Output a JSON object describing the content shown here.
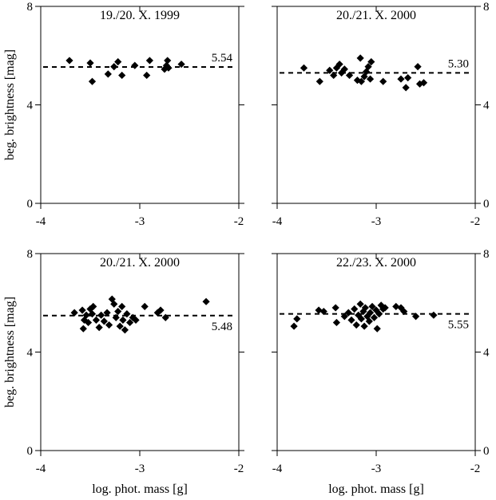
{
  "chart_data": [
    {
      "type": "scatter",
      "title": "19./20. X. 1999",
      "xlim": [
        -4,
        -2
      ],
      "ylim": [
        0,
        8
      ],
      "xticks": [
        "-4",
        "-3",
        "-2"
      ],
      "yticks": [
        "0",
        "4",
        "8"
      ],
      "xlabel": "",
      "ylabel": "beg. brightness [mag]",
      "fit_value": 5.54,
      "fit_label": "5.54",
      "points": [
        {
          "x": -3.71,
          "y": 5.8
        },
        {
          "x": -3.5,
          "y": 5.7
        },
        {
          "x": -3.48,
          "y": 4.95
        },
        {
          "x": -3.32,
          "y": 5.25
        },
        {
          "x": -3.26,
          "y": 5.55
        },
        {
          "x": -3.22,
          "y": 5.75
        },
        {
          "x": -3.18,
          "y": 5.2
        },
        {
          "x": -3.05,
          "y": 5.6
        },
        {
          "x": -2.93,
          "y": 5.2
        },
        {
          "x": -2.9,
          "y": 5.8
        },
        {
          "x": -2.75,
          "y": 5.45
        },
        {
          "x": -2.73,
          "y": 5.6
        },
        {
          "x": -2.72,
          "y": 5.8
        },
        {
          "x": -2.71,
          "y": 5.5
        },
        {
          "x": -2.58,
          "y": 5.65
        }
      ]
    },
    {
      "type": "scatter",
      "title": "20./21. X. 2000",
      "xlim": [
        -4,
        -2
      ],
      "ylim": [
        0,
        8
      ],
      "xticks": [
        "-4",
        "-3",
        "-2"
      ],
      "yticks": [
        "0",
        "4",
        "8"
      ],
      "xlabel": "",
      "ylabel": "",
      "fit_value": 5.3,
      "fit_label": "5.30",
      "points": [
        {
          "x": -3.73,
          "y": 5.5
        },
        {
          "x": -3.57,
          "y": 4.95
        },
        {
          "x": -3.47,
          "y": 5.4
        },
        {
          "x": -3.43,
          "y": 5.2
        },
        {
          "x": -3.4,
          "y": 5.5
        },
        {
          "x": -3.37,
          "y": 5.65
        },
        {
          "x": -3.35,
          "y": 5.3
        },
        {
          "x": -3.32,
          "y": 5.45
        },
        {
          "x": -3.27,
          "y": 5.2
        },
        {
          "x": -3.19,
          "y": 5.0
        },
        {
          "x": -3.16,
          "y": 5.9
        },
        {
          "x": -3.15,
          "y": 4.95
        },
        {
          "x": -3.12,
          "y": 5.15
        },
        {
          "x": -3.1,
          "y": 5.35
        },
        {
          "x": -3.08,
          "y": 5.55
        },
        {
          "x": -3.06,
          "y": 5.05
        },
        {
          "x": -3.05,
          "y": 5.75
        },
        {
          "x": -2.93,
          "y": 4.95
        },
        {
          "x": -2.75,
          "y": 5.05
        },
        {
          "x": -2.7,
          "y": 4.7
        },
        {
          "x": -2.68,
          "y": 5.1
        },
        {
          "x": -2.58,
          "y": 5.55
        },
        {
          "x": -2.56,
          "y": 4.85
        },
        {
          "x": -2.52,
          "y": 4.9
        }
      ]
    },
    {
      "type": "scatter",
      "title": "20./21. X. 2000",
      "xlim": [
        -4,
        -2
      ],
      "ylim": [
        0,
        8
      ],
      "xticks": [
        "-4",
        "-3",
        "-2"
      ],
      "yticks": [
        "0",
        "4",
        "8"
      ],
      "xlabel": "log. phot. mass [g]",
      "ylabel": "beg. brightness [mag]",
      "fit_value": 5.48,
      "fit_label": "5.48",
      "points": [
        {
          "x": -3.66,
          "y": 5.6
        },
        {
          "x": -3.58,
          "y": 5.7
        },
        {
          "x": -3.57,
          "y": 4.95
        },
        {
          "x": -3.56,
          "y": 5.3
        },
        {
          "x": -3.54,
          "y": 5.5
        },
        {
          "x": -3.52,
          "y": 5.2
        },
        {
          "x": -3.5,
          "y": 5.75
        },
        {
          "x": -3.48,
          "y": 5.55
        },
        {
          "x": -3.47,
          "y": 5.85
        },
        {
          "x": -3.44,
          "y": 5.3
        },
        {
          "x": -3.41,
          "y": 5.0
        },
        {
          "x": -3.39,
          "y": 5.5
        },
        {
          "x": -3.36,
          "y": 5.25
        },
        {
          "x": -3.33,
          "y": 5.6
        },
        {
          "x": -3.31,
          "y": 5.1
        },
        {
          "x": -3.28,
          "y": 6.15
        },
        {
          "x": -3.26,
          "y": 5.95
        },
        {
          "x": -3.24,
          "y": 5.4
        },
        {
          "x": -3.22,
          "y": 5.65
        },
        {
          "x": -3.2,
          "y": 5.05
        },
        {
          "x": -3.18,
          "y": 5.85
        },
        {
          "x": -3.17,
          "y": 5.3
        },
        {
          "x": -3.15,
          "y": 4.9
        },
        {
          "x": -3.13,
          "y": 5.55
        },
        {
          "x": -3.1,
          "y": 5.2
        },
        {
          "x": -3.07,
          "y": 5.4
        },
        {
          "x": -3.04,
          "y": 5.3
        },
        {
          "x": -2.95,
          "y": 5.85
        },
        {
          "x": -2.82,
          "y": 5.6
        },
        {
          "x": -2.79,
          "y": 5.7
        },
        {
          "x": -2.74,
          "y": 5.4
        },
        {
          "x": -2.33,
          "y": 6.05
        }
      ]
    },
    {
      "type": "scatter",
      "title": "22./23. X. 2000",
      "xlim": [
        -4,
        -2
      ],
      "ylim": [
        0,
        8
      ],
      "xticks": [
        "-4",
        "-3",
        "-2"
      ],
      "yticks": [
        "0",
        "4",
        "8"
      ],
      "xlabel": "log. phot. mass [g]",
      "ylabel": "",
      "fit_value": 5.55,
      "fit_label": "5.55",
      "points": [
        {
          "x": -3.83,
          "y": 5.05
        },
        {
          "x": -3.8,
          "y": 5.35
        },
        {
          "x": -3.58,
          "y": 5.7
        },
        {
          "x": -3.53,
          "y": 5.65
        },
        {
          "x": -3.41,
          "y": 5.8
        },
        {
          "x": -3.4,
          "y": 5.2
        },
        {
          "x": -3.32,
          "y": 5.45
        },
        {
          "x": -3.28,
          "y": 5.6
        },
        {
          "x": -3.25,
          "y": 5.3
        },
        {
          "x": -3.22,
          "y": 5.75
        },
        {
          "x": -3.2,
          "y": 5.1
        },
        {
          "x": -3.18,
          "y": 5.5
        },
        {
          "x": -3.16,
          "y": 5.95
        },
        {
          "x": -3.15,
          "y": 5.35
        },
        {
          "x": -3.13,
          "y": 5.65
        },
        {
          "x": -3.12,
          "y": 5.05
        },
        {
          "x": -3.11,
          "y": 5.8
        },
        {
          "x": -3.09,
          "y": 5.45
        },
        {
          "x": -3.07,
          "y": 5.25
        },
        {
          "x": -3.06,
          "y": 5.6
        },
        {
          "x": -3.04,
          "y": 5.85
        },
        {
          "x": -3.02,
          "y": 5.4
        },
        {
          "x": -3.0,
          "y": 5.7
        },
        {
          "x": -2.99,
          "y": 4.95
        },
        {
          "x": -2.97,
          "y": 5.55
        },
        {
          "x": -2.95,
          "y": 5.9
        },
        {
          "x": -2.93,
          "y": 5.75
        },
        {
          "x": -2.91,
          "y": 5.8
        },
        {
          "x": -2.8,
          "y": 5.85
        },
        {
          "x": -2.75,
          "y": 5.8
        },
        {
          "x": -2.72,
          "y": 5.65
        },
        {
          "x": -2.6,
          "y": 5.45
        },
        {
          "x": -2.42,
          "y": 5.5
        }
      ]
    }
  ]
}
